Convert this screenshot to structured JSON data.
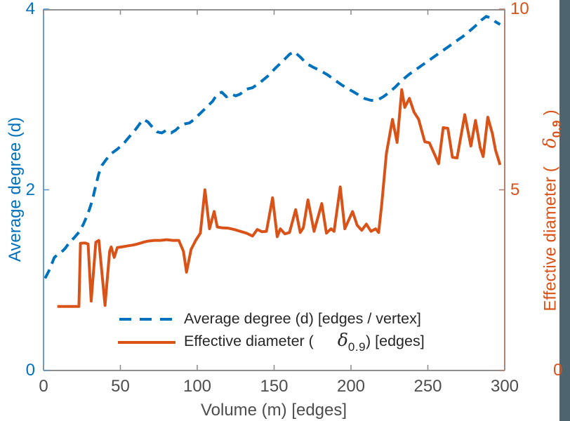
{
  "window": {
    "edge_band_color": "#4e656f"
  },
  "chart_data": {
    "type": "line",
    "title": "",
    "xlabel": "Volume (m) [edges]",
    "xlim": [
      0,
      300
    ],
    "x_ticks": [
      0,
      50,
      100,
      150,
      200,
      250,
      300
    ],
    "grid": "off",
    "legend_position": "inside-bottom-center",
    "left_axis": {
      "label": "Average degree (d)",
      "color": "#0072BD",
      "lim": [
        0,
        4
      ],
      "ticks": [
        0,
        2,
        4
      ]
    },
    "right_axis": {
      "label_prefix": "Effective diameter (",
      "label_symbol": "δ",
      "label_sub": "0.9",
      "label_suffix": ")",
      "color": "#D95319",
      "lim": [
        0,
        10
      ],
      "ticks": [
        0,
        5,
        10
      ]
    },
    "series": [
      {
        "name": "Average degree (d) [edges / vertex]",
        "axis": "left",
        "style": "dashed",
        "color": "#0072BD",
        "points": [
          [
            1,
            1.02
          ],
          [
            4,
            1.12
          ],
          [
            7,
            1.25
          ],
          [
            9,
            1.28
          ],
          [
            11,
            1.3
          ],
          [
            14,
            1.35
          ],
          [
            17,
            1.42
          ],
          [
            20,
            1.47
          ],
          [
            23,
            1.53
          ],
          [
            26,
            1.62
          ],
          [
            28,
            1.7
          ],
          [
            30,
            1.79
          ],
          [
            32,
            1.9
          ],
          [
            34,
            2.05
          ],
          [
            36,
            2.18
          ],
          [
            38,
            2.27
          ],
          [
            41,
            2.34
          ],
          [
            44,
            2.4
          ],
          [
            48,
            2.45
          ],
          [
            52,
            2.51
          ],
          [
            56,
            2.59
          ],
          [
            60,
            2.67
          ],
          [
            63,
            2.74
          ],
          [
            65,
            2.78
          ],
          [
            68,
            2.75
          ],
          [
            71,
            2.69
          ],
          [
            74,
            2.64
          ],
          [
            77,
            2.63
          ],
          [
            80,
            2.66
          ],
          [
            83,
            2.63
          ],
          [
            86,
            2.66
          ],
          [
            89,
            2.71
          ],
          [
            92,
            2.73
          ],
          [
            95,
            2.74
          ],
          [
            98,
            2.78
          ],
          [
            101,
            2.83
          ],
          [
            104,
            2.88
          ],
          [
            107,
            2.93
          ],
          [
            110,
            2.98
          ],
          [
            113,
            3.06
          ],
          [
            116,
            3.08
          ],
          [
            119,
            3.03
          ],
          [
            122,
            3.06
          ],
          [
            125,
            3.04
          ],
          [
            128,
            3.06
          ],
          [
            131,
            3.11
          ],
          [
            136,
            3.13
          ],
          [
            141,
            3.19
          ],
          [
            146,
            3.26
          ],
          [
            151,
            3.35
          ],
          [
            156,
            3.43
          ],
          [
            160,
            3.5
          ],
          [
            163,
            3.53
          ],
          [
            167,
            3.47
          ],
          [
            171,
            3.4
          ],
          [
            175,
            3.36
          ],
          [
            180,
            3.32
          ],
          [
            185,
            3.27
          ],
          [
            189,
            3.22
          ],
          [
            194,
            3.16
          ],
          [
            199,
            3.11
          ],
          [
            204,
            3.06
          ],
          [
            209,
            3.01
          ],
          [
            213,
            2.99
          ],
          [
            217,
            2.99
          ],
          [
            221,
            3.03
          ],
          [
            225,
            3.08
          ],
          [
            229,
            3.14
          ],
          [
            233,
            3.21
          ],
          [
            238,
            3.28
          ],
          [
            243,
            3.34
          ],
          [
            248,
            3.4
          ],
          [
            253,
            3.46
          ],
          [
            258,
            3.52
          ],
          [
            263,
            3.58
          ],
          [
            268,
            3.64
          ],
          [
            273,
            3.7
          ],
          [
            278,
            3.77
          ],
          [
            282,
            3.83
          ],
          [
            285,
            3.88
          ],
          [
            288,
            3.92
          ],
          [
            291,
            3.9
          ],
          [
            294,
            3.86
          ],
          [
            297,
            3.83
          ]
        ]
      },
      {
        "name": "Effective diameter ( δ0.9 ) [edges]",
        "axis": "right",
        "style": "solid",
        "color": "#D95319",
        "points": [
          [
            9,
            1.77
          ],
          [
            14,
            1.77
          ],
          [
            19,
            1.77
          ],
          [
            23,
            1.77
          ],
          [
            24,
            3.52
          ],
          [
            27,
            3.53
          ],
          [
            29,
            3.5
          ],
          [
            31,
            1.92
          ],
          [
            34,
            3.55
          ],
          [
            36,
            3.6
          ],
          [
            40,
            1.8
          ],
          [
            43,
            3.3
          ],
          [
            44,
            3.42
          ],
          [
            46,
            3.13
          ],
          [
            48,
            3.4
          ],
          [
            51,
            3.42
          ],
          [
            55,
            3.45
          ],
          [
            58,
            3.47
          ],
          [
            61,
            3.5
          ],
          [
            65,
            3.55
          ],
          [
            68,
            3.58
          ],
          [
            72,
            3.6
          ],
          [
            76,
            3.6
          ],
          [
            80,
            3.62
          ],
          [
            84,
            3.6
          ],
          [
            88,
            3.6
          ],
          [
            91,
            3.3
          ],
          [
            93,
            2.72
          ],
          [
            96,
            3.35
          ],
          [
            99,
            3.6
          ],
          [
            102,
            3.8
          ],
          [
            105,
            5.0
          ],
          [
            108,
            3.92
          ],
          [
            111,
            4.4
          ],
          [
            113,
            3.97
          ],
          [
            116,
            3.95
          ],
          [
            120,
            3.94
          ],
          [
            124,
            3.9
          ],
          [
            128,
            3.85
          ],
          [
            132,
            3.8
          ],
          [
            136,
            3.72
          ],
          [
            139,
            3.9
          ],
          [
            142,
            3.84
          ],
          [
            145,
            3.85
          ],
          [
            149,
            4.78
          ],
          [
            152,
            3.7
          ],
          [
            154,
            3.92
          ],
          [
            157,
            3.78
          ],
          [
            160,
            3.82
          ],
          [
            164,
            4.45
          ],
          [
            167,
            3.82
          ],
          [
            169,
            3.95
          ],
          [
            172,
            4.72
          ],
          [
            176,
            3.85
          ],
          [
            181,
            4.62
          ],
          [
            184,
            3.8
          ],
          [
            187,
            3.92
          ],
          [
            189,
            3.85
          ],
          [
            193,
            5.08
          ],
          [
            196,
            3.92
          ],
          [
            201,
            4.4
          ],
          [
            204,
            4.02
          ],
          [
            207,
            3.88
          ],
          [
            210,
            4.05
          ],
          [
            213,
            3.85
          ],
          [
            216,
            3.92
          ],
          [
            218,
            3.82
          ],
          [
            220,
            4.6
          ],
          [
            223,
            6.0
          ],
          [
            227,
            6.95
          ],
          [
            230,
            6.31
          ],
          [
            233,
            7.77
          ],
          [
            235,
            7.28
          ],
          [
            238,
            7.53
          ],
          [
            241,
            7.15
          ],
          [
            244,
            6.95
          ],
          [
            248,
            6.33
          ],
          [
            251,
            6.3
          ],
          [
            255,
            5.92
          ],
          [
            257,
            5.72
          ],
          [
            260,
            6.72
          ],
          [
            263,
            6.7
          ],
          [
            266,
            5.9
          ],
          [
            269,
            5.88
          ],
          [
            274,
            7.08
          ],
          [
            278,
            6.21
          ],
          [
            281,
            6.92
          ],
          [
            284,
            6.17
          ],
          [
            286,
            5.92
          ],
          [
            289,
            7.01
          ],
          [
            292,
            6.55
          ],
          [
            294,
            6.1
          ],
          [
            297,
            5.69
          ]
        ]
      }
    ],
    "legend": {
      "rows": [
        {
          "label": "Average degree (d) [edges / vertex]"
        },
        {
          "label_prefix": "Effective diameter (",
          "symbol": "δ",
          "sub": "0.9",
          "suffix": ") [edges]"
        }
      ]
    }
  }
}
